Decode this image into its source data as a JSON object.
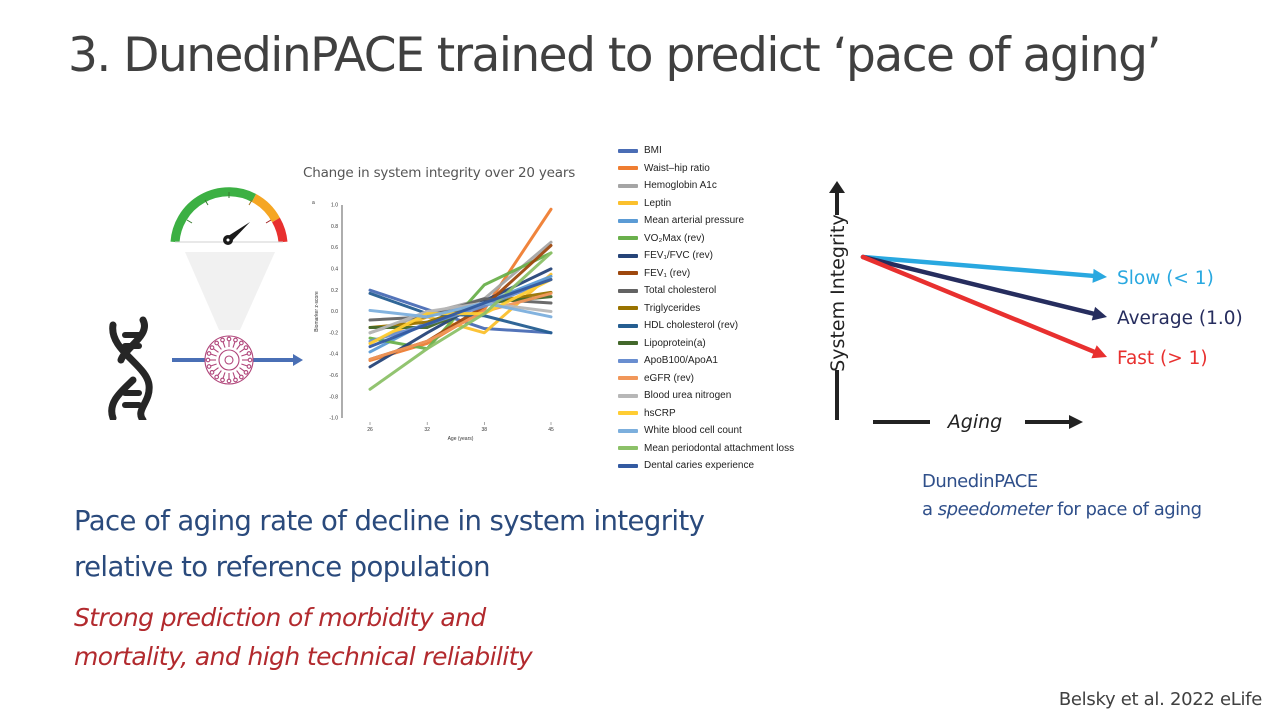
{
  "slide": {
    "title": "3. DunedinPACE trained to predict ‘pace of aging’",
    "chart_subtitle": "Change in system integrity over 20 years",
    "main_text": "Pace of aging rate of decline in system integrity relative to reference population",
    "sub_text": "Strong prediction of morbidity and mortality, and high technical reliability",
    "caption_line1": "DunedinPACE",
    "caption_line2_prefix": "a ",
    "caption_line2_em": "speedometer",
    "caption_line2_suffix": " for pace of aging",
    "citation": "Belsky et al. 2022 eLife"
  },
  "illustration": {
    "icons": [
      "speedometer-icon",
      "dna-icon",
      "neural-chip-icon",
      "arrow-right-icon"
    ],
    "gauge_colors": [
      "#3cb043",
      "#f5a623",
      "#e8302f"
    ],
    "arrow_color": "#4a6fb5",
    "chip_color": "#b0457a"
  },
  "concept": {
    "y_label": "System Integrity",
    "x_label": "Aging",
    "lines": [
      {
        "label": "Slow (< 1)",
        "color": "#29a8e0",
        "slope": 0.1
      },
      {
        "label": "Average (1.0)",
        "color": "#262d5e",
        "slope": 0.3
      },
      {
        "label": "Fast (> 1)",
        "color": "#e8302f",
        "slope": 0.5
      }
    ]
  },
  "chart_data": {
    "type": "line",
    "title": "Change in system integrity over 20 years",
    "panel_label": "a",
    "xlabel": "Age (years)",
    "ylabel": "Biomarker z-score",
    "x": [
      26,
      32,
      38,
      45
    ],
    "x_tick_labels": [
      "26",
      "32",
      "38",
      "45"
    ],
    "ylim": [
      -1.0,
      1.0
    ],
    "y_ticks": [
      1.0,
      0.8,
      0.6,
      0.4,
      0.2,
      0.0,
      -0.2,
      -0.4,
      -0.6,
      -0.8,
      -1.0
    ],
    "y_tick_labels": [
      "1.0",
      "0.8",
      "0.6",
      "0.4",
      "0.2",
      "0.0",
      "-0.2",
      "-0.4",
      "-0.6",
      "-0.8",
      "-1.0"
    ],
    "grid": false,
    "legend_position": "right",
    "series": [
      {
        "name": "BMI",
        "color": "#4a6db5",
        "values": [
          0.2,
          0.02,
          -0.16,
          -0.2
        ]
      },
      {
        "name": "Waist–hip ratio",
        "color": "#ef7d31",
        "values": [
          -0.46,
          -0.3,
          0.02,
          0.96
        ]
      },
      {
        "name": "Hemoglobin A1c",
        "color": "#a5a5a5",
        "values": [
          -0.2,
          -0.02,
          0.12,
          0.65
        ]
      },
      {
        "name": "Leptin",
        "color": "#fbc02d",
        "values": [
          -0.3,
          -0.05,
          -0.2,
          0.35
        ]
      },
      {
        "name": "Mean arterial pressure",
        "color": "#5b9bd5",
        "values": [
          -0.38,
          -0.1,
          0.08,
          0.33
        ]
      },
      {
        "name": "VO₂Max (rev)",
        "color": "#6ab04c",
        "values": [
          -0.25,
          -0.35,
          0.25,
          0.55
        ]
      },
      {
        "name": "FEV₁/FVC (rev)",
        "color": "#264478",
        "values": [
          -0.52,
          -0.2,
          0.1,
          0.4
        ]
      },
      {
        "name": "FEV₁ (rev)",
        "color": "#9e480e",
        "values": [
          -0.45,
          -0.28,
          0.05,
          0.62
        ]
      },
      {
        "name": "Total cholesterol",
        "color": "#636363",
        "values": [
          -0.08,
          -0.05,
          0.12,
          0.08
        ]
      },
      {
        "name": "Triglycerides",
        "color": "#997300",
        "values": [
          -0.15,
          -0.1,
          0.08,
          0.18
        ]
      },
      {
        "name": "HDL cholesterol (rev)",
        "color": "#255e91",
        "values": [
          0.17,
          -0.02,
          -0.04,
          -0.2
        ]
      },
      {
        "name": "Lipoprotein(a)",
        "color": "#43682b",
        "values": [
          -0.15,
          -0.15,
          0.08,
          0.14
        ]
      },
      {
        "name": "ApoB100/ApoA1",
        "color": "#698ed0",
        "values": [
          -0.28,
          -0.12,
          0.05,
          0.3
        ]
      },
      {
        "name": "eGFR (rev)",
        "color": "#f1975a",
        "values": [
          -0.45,
          -0.28,
          0.0,
          0.17
        ]
      },
      {
        "name": "Blood urea nitrogen",
        "color": "#b7b7b7",
        "values": [
          -0.2,
          0.0,
          0.08,
          0.0
        ]
      },
      {
        "name": "hsCRP",
        "color": "#ffcd33",
        "values": [
          -0.3,
          -0.02,
          -0.02,
          0.3
        ]
      },
      {
        "name": "White blood cell count",
        "color": "#7cafdd",
        "values": [
          0.01,
          -0.05,
          0.08,
          -0.05
        ]
      },
      {
        "name": "Mean periodontal attachment loss",
        "color": "#8cc168",
        "values": [
          -0.73,
          -0.35,
          -0.02,
          0.55
        ]
      },
      {
        "name": "Dental caries experience",
        "color": "#335aa1",
        "values": [
          -0.33,
          -0.12,
          0.08,
          0.3
        ]
      }
    ]
  }
}
